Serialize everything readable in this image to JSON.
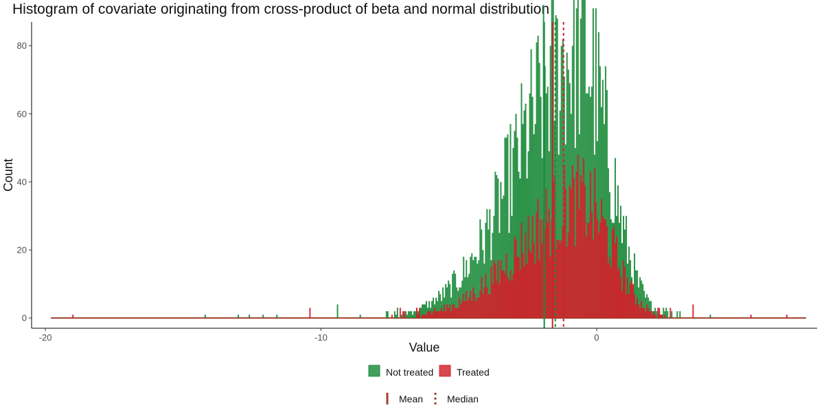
{
  "chart_data": {
    "type": "histogram",
    "title": "Histogram of covariate originating from cross-product of beta and normal distribution",
    "xlabel": "Value",
    "ylabel": "Count",
    "xlim": [
      -20.5,
      8
    ],
    "ylim": [
      -3,
      87
    ],
    "x_ticks": [
      -20,
      -10,
      0
    ],
    "x_tick_labels": [
      "-20",
      "-10",
      "0"
    ],
    "y_ticks": [
      0,
      20,
      40,
      60,
      80
    ],
    "y_tick_labels": [
      "0",
      "20",
      "40",
      "60",
      "80"
    ],
    "bin_range": [
      -19.8,
      7.6
    ],
    "series": [
      {
        "name": "Not treated",
        "color": "#1b8a3a",
        "peak_x": -0.6,
        "peak_count": 85,
        "mean": -1.9,
        "median": -1.5,
        "outliers": [
          {
            "x": -14.2,
            "count": 1
          },
          {
            "x": -13.0,
            "count": 1
          },
          {
            "x": -12.6,
            "count": 1
          },
          {
            "x": -12.1,
            "count": 1
          },
          {
            "x": -11.6,
            "count": 1
          },
          {
            "x": -9.4,
            "count": 4
          }
        ]
      },
      {
        "name": "Treated",
        "color": "#d2202a",
        "peak_x": -0.5,
        "peak_count": 37,
        "mean": -1.6,
        "median": -1.2,
        "outliers": [
          {
            "x": -19.0,
            "count": 1
          },
          {
            "x": -10.4,
            "count": 3
          },
          {
            "x": 3.5,
            "count": 4
          },
          {
            "x": 5.6,
            "count": 1
          },
          {
            "x": 6.9,
            "count": 1
          }
        ]
      }
    ],
    "legend_fill": {
      "position": "bottom",
      "items": [
        {
          "label": "Not treated",
          "color": "#1b8a3a"
        },
        {
          "label": "Treated",
          "color": "#d2202a"
        }
      ]
    },
    "legend_linetype": {
      "position": "bottom",
      "items": [
        {
          "label": "Mean",
          "linetype": "solid",
          "color": "#a0402a"
        },
        {
          "label": "Median",
          "linetype": "dotted",
          "color": "#a0402a"
        }
      ]
    }
  }
}
